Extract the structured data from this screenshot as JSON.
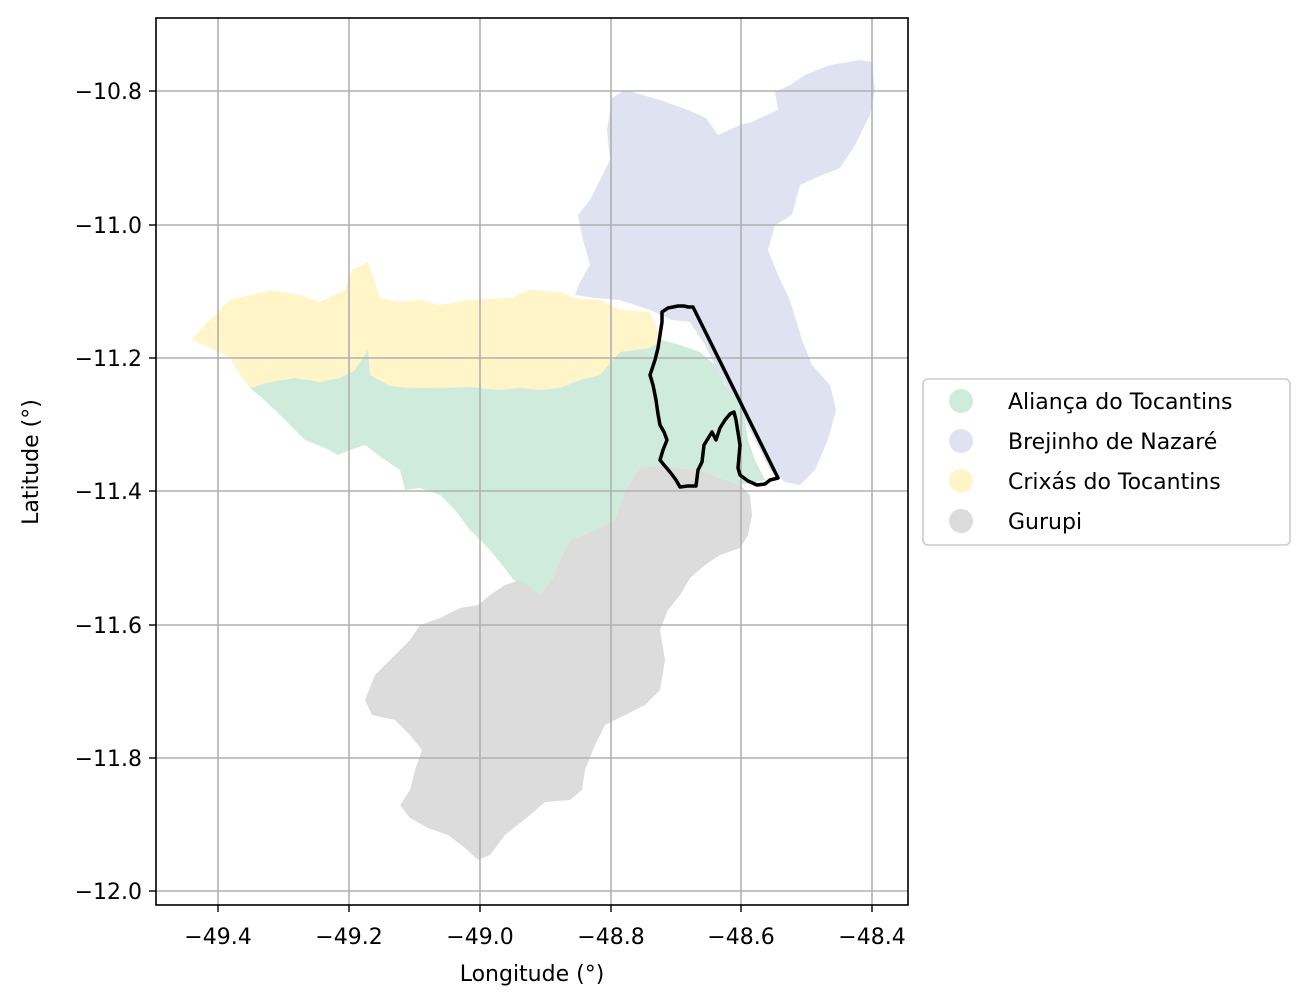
{
  "chart_data": {
    "type": "map",
    "xlabel": "Longitude (°)",
    "ylabel": "Latitude (°)",
    "xlim": [
      -49.5,
      -48.35
    ],
    "ylim": [
      -12.02,
      -10.69
    ],
    "x_ticks": [
      "−49.4",
      "−49.2",
      "−49.0",
      "−48.8",
      "−48.6",
      "−48.4"
    ],
    "y_ticks": [
      "−10.8",
      "−11.0",
      "−11.2",
      "−11.4",
      "−11.6",
      "−11.8",
      "−12.0"
    ],
    "grid": true,
    "legend_position": "right",
    "legend": [
      {
        "name": "Aliança do Tocantins",
        "color": "#cfebdc"
      },
      {
        "name": "Brejinho de Nazaré",
        "color": "#dfe3f1"
      },
      {
        "name": "Crixás do Tocantins",
        "color": "#fff5c8"
      },
      {
        "name": "Gurupi",
        "color": "#dcdcdc"
      }
    ],
    "regions": [
      {
        "name": "Brejinho de Nazaré",
        "color": "#dfe3f1"
      },
      {
        "name": "Crixás do Tocantins",
        "color": "#fff5c8"
      },
      {
        "name": "Aliança do Tocantins",
        "color": "#cfebdc"
      },
      {
        "name": "Gurupi",
        "color": "#dcdcdc"
      }
    ],
    "outline_color": "#000000"
  }
}
